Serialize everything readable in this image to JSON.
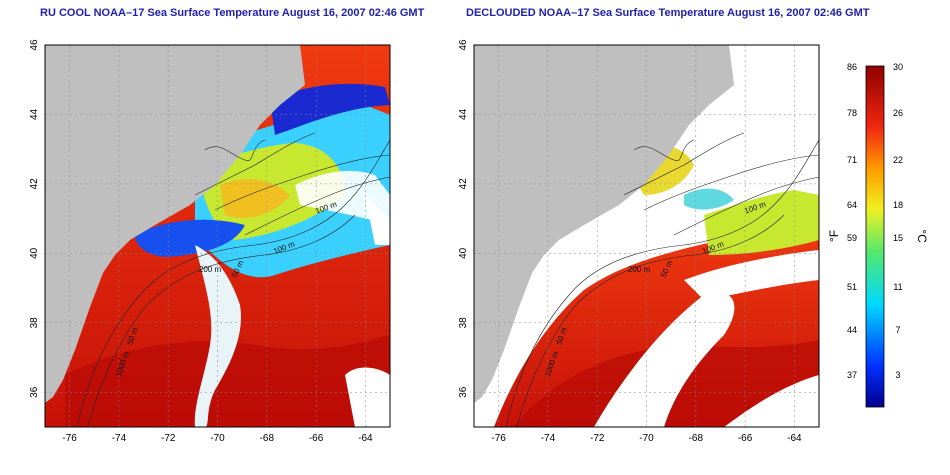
{
  "panels": [
    {
      "title": "RU COOL NOAA–17 Sea Surface Temperature August 16, 2007 02:46 GMT",
      "x_ticks": [
        "-76",
        "-74",
        "-72",
        "-70",
        "-68",
        "-66",
        "-64"
      ],
      "y_ticks": [
        "36",
        "38",
        "40",
        "42",
        "44",
        "46"
      ],
      "contour_labels": [
        "100 m",
        "100 m",
        "50 m",
        "200 m",
        "50 m",
        "1000 m"
      ]
    },
    {
      "title": "DECLOUDED NOAA–17 Sea Surface Temperature August 16, 2007 02:46 GMT",
      "x_ticks": [
        "-76",
        "-74",
        "-72",
        "-70",
        "-68",
        "-66",
        "-64"
      ],
      "y_ticks": [
        "36",
        "38",
        "40",
        "42",
        "44",
        "46"
      ],
      "contour_labels": [
        "100 m",
        "100 m",
        "50 m",
        "200 m",
        "50 m",
        "1000 m"
      ]
    }
  ],
  "map_extent": {
    "lon": [
      -77,
      -63
    ],
    "lat": [
      35,
      46
    ]
  },
  "colorbar": {
    "fahrenheit_ticks": [
      "86",
      "78",
      "71",
      "64",
      "59",
      "51",
      "44",
      "37"
    ],
    "celsius_ticks": [
      "30",
      "26",
      "22",
      "18",
      "15",
      "11",
      "7",
      "3"
    ],
    "fahrenheit_unit": "°F",
    "celsius_unit": "°C",
    "range_c": [
      0,
      30
    ]
  },
  "colors": {
    "land": "#bfbfbf",
    "cloud": "#ffffff",
    "title": "#1f1fb0"
  }
}
